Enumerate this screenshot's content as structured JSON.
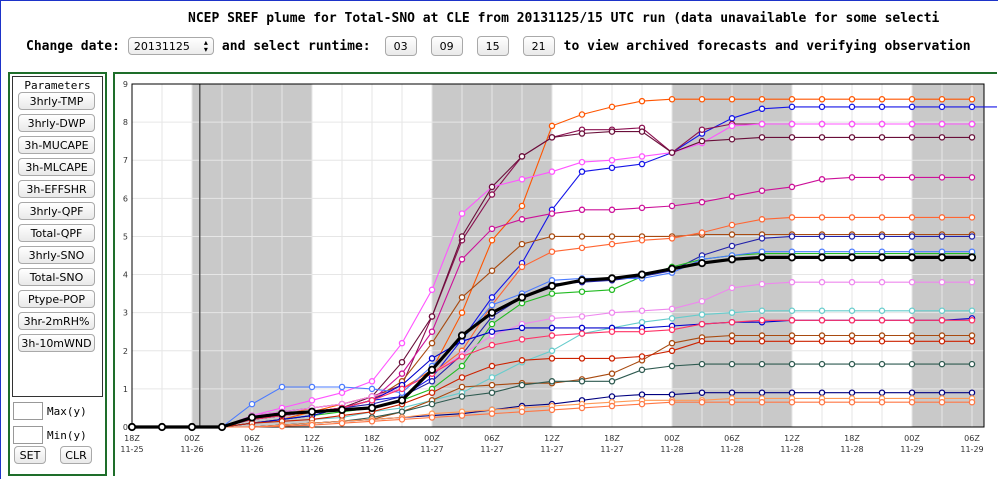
{
  "header": {
    "title": "NCEP SREF plume for Total-SNO at CLE from 20131125/15 UTC run (data unavailable for some selecti",
    "change_date_label": "Change date:",
    "date_value": "20131125",
    "runtime_label": "and select runtime:",
    "runtimes": [
      "03",
      "09",
      "15",
      "21"
    ],
    "tail_text": "to view archived forecasts and verifying observation"
  },
  "sidebar": {
    "heading": "Parameters",
    "buttons": [
      "3hrly-TMP",
      "3hrly-DWP",
      "3h-MUCAPE",
      "3h-MLCAPE",
      "3h-EFFSHR",
      "3hrly-QPF",
      "Total-QPF",
      "3hrly-SNO",
      "Total-SNO",
      "Ptype-POP",
      "3hr-2mRH%",
      "3h-10mWND"
    ],
    "max_label": "Max(y)",
    "min_label": "Min(y)",
    "set_label": "SET",
    "clr_label": "CLR"
  },
  "chart_data": {
    "type": "line",
    "y_ticks": [
      "0",
      "1",
      "2",
      "3",
      "4",
      "5",
      "6",
      "7",
      "8",
      "9"
    ],
    "ylim": [
      0,
      9
    ],
    "x_tick_labels": [
      {
        "hour": "18Z",
        "date": "11-25"
      },
      {
        "hour": "00Z",
        "date": "11-26"
      },
      {
        "hour": "06Z",
        "date": "11-26"
      },
      {
        "hour": "12Z",
        "date": "11-26"
      },
      {
        "hour": "18Z",
        "date": "11-26"
      },
      {
        "hour": "00Z",
        "date": "11-27"
      },
      {
        "hour": "06Z",
        "date": "11-27"
      },
      {
        "hour": "12Z",
        "date": "11-27"
      },
      {
        "hour": "18Z",
        "date": "11-27"
      },
      {
        "hour": "00Z",
        "date": "11-28"
      },
      {
        "hour": "06Z",
        "date": "11-28"
      },
      {
        "hour": "12Z",
        "date": "11-28"
      },
      {
        "hour": "18Z",
        "date": "11-28"
      },
      {
        "hour": "00Z",
        "date": "11-29"
      },
      {
        "hour": "06Z",
        "date": "11-29"
      }
    ],
    "shaded_bands": [
      [
        1,
        3
      ],
      [
        5,
        7
      ],
      [
        9,
        11
      ],
      [
        13,
        14.2
      ]
    ],
    "initial_time_marker": 1.13,
    "series": [
      {
        "color": "#ff5500",
        "values": [
          0,
          0,
          0,
          0,
          0.1,
          0.2,
          0.4,
          0.6,
          0.8,
          1.0,
          1.5,
          3.0,
          4.9,
          5.8,
          7.9,
          8.2,
          8.4,
          8.55,
          8.6,
          8.6,
          8.6,
          8.6,
          8.6,
          8.6,
          8.6,
          8.6,
          8.6,
          8.6,
          8.6
        ]
      },
      {
        "color": "#1515e8",
        "values": [
          0,
          0,
          0,
          0,
          0.2,
          0.3,
          0.4,
          0.5,
          0.7,
          0.8,
          1.3,
          2.3,
          3.4,
          4.3,
          5.7,
          6.7,
          6.8,
          6.9,
          7.2,
          7.7,
          8.1,
          8.35,
          8.4,
          8.4,
          8.4,
          8.4,
          8.4,
          8.4,
          8.4,
          8.4
        ]
      },
      {
        "color": "#8b1050",
        "values": [
          0,
          0,
          0,
          0,
          0.3,
          0.4,
          0.5,
          0.6,
          0.8,
          1.1,
          2.9,
          4.9,
          6.1,
          7.1,
          7.6,
          7.8,
          7.8,
          7.85,
          7.2,
          7.8,
          7.95,
          7.95,
          7.95,
          7.95,
          7.95,
          7.95,
          7.95,
          7.95,
          7.95
        ]
      },
      {
        "color": "#ff55ff",
        "values": [
          0,
          0,
          0,
          0,
          0.3,
          0.5,
          0.7,
          0.9,
          1.2,
          2.2,
          3.6,
          5.6,
          6.3,
          6.5,
          6.7,
          6.95,
          7.0,
          7.1,
          7.2,
          7.45,
          7.9,
          7.95,
          7.95,
          7.95,
          7.95,
          7.95,
          7.95,
          7.95,
          7.95
        ]
      },
      {
        "color": "#6a0f3a",
        "values": [
          0,
          0,
          0,
          0,
          0.2,
          0.3,
          0.4,
          0.5,
          0.8,
          1.7,
          2.9,
          5.0,
          6.3,
          7.1,
          7.6,
          7.7,
          7.75,
          7.75,
          7.2,
          7.5,
          7.55,
          7.6,
          7.6,
          7.6,
          7.6,
          7.6,
          7.6,
          7.6,
          7.6
        ]
      },
      {
        "color": "#cc1199",
        "values": [
          0,
          0,
          0,
          0,
          0.2,
          0.3,
          0.4,
          0.5,
          0.7,
          1.4,
          2.5,
          4.4,
          5.2,
          5.45,
          5.6,
          5.7,
          5.7,
          5.75,
          5.8,
          5.9,
          6.05,
          6.2,
          6.3,
          6.5,
          6.55,
          6.55,
          6.55,
          6.55,
          6.55
        ]
      },
      {
        "color": "#a84a10",
        "values": [
          0,
          0,
          0,
          0,
          0.1,
          0.2,
          0.3,
          0.5,
          0.7,
          1.2,
          2.2,
          3.4,
          4.1,
          4.8,
          5.0,
          5.0,
          5.0,
          5.0,
          5.0,
          5.05,
          5.05,
          5.05,
          5.05,
          5.05,
          5.05,
          5.05,
          5.05,
          5.05,
          5.05
        ]
      },
      {
        "color": "#ff6633",
        "values": [
          0,
          0,
          0,
          0,
          0.2,
          0.3,
          0.5,
          0.6,
          0.8,
          1.0,
          1.4,
          2.0,
          3.2,
          4.2,
          4.6,
          4.7,
          4.8,
          4.9,
          4.95,
          5.1,
          5.3,
          5.45,
          5.5,
          5.5,
          5.5,
          5.5,
          5.5,
          5.5,
          5.5
        ]
      },
      {
        "color": "#2222aa",
        "values": [
          0,
          0,
          0,
          0,
          0.2,
          0.3,
          0.4,
          0.5,
          0.6,
          0.8,
          1.2,
          1.9,
          2.9,
          3.4,
          3.75,
          3.8,
          3.85,
          3.95,
          4.1,
          4.5,
          4.75,
          4.95,
          5.0,
          5.0,
          5.0,
          5.0,
          5.0,
          5.0,
          5.0
        ]
      },
      {
        "color": "#22bb22",
        "values": [
          0,
          0,
          0,
          0,
          0.1,
          0.2,
          0.3,
          0.4,
          0.5,
          0.7,
          1.0,
          1.6,
          2.7,
          3.25,
          3.5,
          3.55,
          3.6,
          3.95,
          4.2,
          4.4,
          4.5,
          4.55,
          4.55,
          4.55,
          4.55,
          4.55,
          4.55,
          4.55,
          4.55
        ]
      },
      {
        "color": "#000000",
        "bold": true,
        "values": [
          0,
          0,
          0,
          0,
          0.25,
          0.35,
          0.4,
          0.45,
          0.5,
          0.7,
          1.5,
          2.4,
          3.0,
          3.4,
          3.7,
          3.85,
          3.9,
          4.0,
          4.15,
          4.3,
          4.4,
          4.45,
          4.45,
          4.45,
          4.45,
          4.45,
          4.45,
          4.45,
          4.45
        ]
      },
      {
        "color": "#4b7bff",
        "values": [
          0,
          0,
          0,
          0,
          0.6,
          1.05,
          1.05,
          1.05,
          1.0,
          0.9,
          1.6,
          2.3,
          3.2,
          3.5,
          3.85,
          3.9,
          3.9,
          3.9,
          4.05,
          4.4,
          4.5,
          4.6,
          4.6,
          4.6,
          4.6,
          4.6,
          4.6,
          4.6,
          4.6
        ]
      },
      {
        "color": "#ee88ee",
        "values": [
          0,
          0,
          0,
          0,
          0.3,
          0.4,
          0.5,
          0.6,
          0.8,
          1.0,
          1.4,
          1.9,
          2.4,
          2.7,
          2.85,
          2.9,
          3.0,
          3.05,
          3.1,
          3.3,
          3.65,
          3.75,
          3.8,
          3.8,
          3.8,
          3.8,
          3.8,
          3.8,
          3.8
        ]
      },
      {
        "color": "#66cccc",
        "values": [
          0,
          0,
          0,
          0,
          0.1,
          0.15,
          0.2,
          0.25,
          0.4,
          0.5,
          0.7,
          0.9,
          1.3,
          1.7,
          2.0,
          2.45,
          2.6,
          2.75,
          2.85,
          2.95,
          3.0,
          3.05,
          3.05,
          3.05,
          3.05,
          3.05,
          3.05,
          3.05,
          3.05
        ]
      },
      {
        "color": "#0000cc",
        "values": [
          0,
          0,
          0,
          0,
          0.1,
          0.2,
          0.3,
          0.5,
          0.7,
          1.1,
          1.8,
          2.25,
          2.5,
          2.6,
          2.6,
          2.6,
          2.6,
          2.6,
          2.65,
          2.7,
          2.75,
          2.75,
          2.8,
          2.8,
          2.8,
          2.8,
          2.8,
          2.8,
          2.85
        ]
      },
      {
        "color": "#ff3366",
        "values": [
          0,
          0,
          0,
          0,
          0.2,
          0.3,
          0.4,
          0.5,
          0.7,
          1.0,
          1.4,
          1.85,
          2.15,
          2.3,
          2.4,
          2.45,
          2.5,
          2.5,
          2.55,
          2.7,
          2.75,
          2.8,
          2.8,
          2.8,
          2.8,
          2.8,
          2.8,
          2.8,
          2.8
        ]
      },
      {
        "color": "#a84a10",
        "values": [
          0,
          0,
          0,
          0,
          0,
          0.05,
          0.1,
          0.15,
          0.2,
          0.4,
          0.7,
          1.05,
          1.1,
          1.15,
          1.15,
          1.25,
          1.4,
          1.75,
          2.2,
          2.35,
          2.4,
          2.4,
          2.4,
          2.4,
          2.4,
          2.4,
          2.4,
          2.4,
          2.4
        ]
      },
      {
        "color": "#cc2200",
        "values": [
          0,
          0,
          0,
          0,
          0.1,
          0.15,
          0.2,
          0.3,
          0.4,
          0.6,
          0.9,
          1.3,
          1.6,
          1.75,
          1.8,
          1.8,
          1.8,
          1.85,
          2.0,
          2.25,
          2.25,
          2.25,
          2.25,
          2.25,
          2.25,
          2.25,
          2.25,
          2.25,
          2.25
        ]
      },
      {
        "color": "#2e5a50",
        "values": [
          0,
          0,
          0,
          0,
          0,
          0.05,
          0.1,
          0.15,
          0.25,
          0.4,
          0.6,
          0.8,
          0.9,
          1.1,
          1.2,
          1.2,
          1.2,
          1.5,
          1.6,
          1.65,
          1.65,
          1.65,
          1.65,
          1.65,
          1.65,
          1.65,
          1.65,
          1.65,
          1.65
        ]
      },
      {
        "color": "#000080",
        "values": [
          0,
          0,
          0,
          0,
          0,
          0.05,
          0.1,
          0.15,
          0.2,
          0.25,
          0.3,
          0.35,
          0.45,
          0.55,
          0.6,
          0.7,
          0.8,
          0.85,
          0.85,
          0.9,
          0.9,
          0.9,
          0.9,
          0.9,
          0.9,
          0.9,
          0.9,
          0.9,
          0.9
        ]
      },
      {
        "color": "#ff9955",
        "values": [
          0,
          0,
          0,
          0,
          0,
          0.05,
          0.1,
          0.15,
          0.2,
          0.25,
          0.35,
          0.4,
          0.45,
          0.5,
          0.55,
          0.6,
          0.65,
          0.7,
          0.7,
          0.7,
          0.75,
          0.75,
          0.75,
          0.75,
          0.75,
          0.75,
          0.75,
          0.75,
          0.75
        ]
      },
      {
        "color": "#ff7744",
        "values": [
          0,
          0,
          0,
          0,
          0,
          0.02,
          0.05,
          0.1,
          0.15,
          0.2,
          0.25,
          0.3,
          0.35,
          0.4,
          0.45,
          0.5,
          0.55,
          0.6,
          0.65,
          0.65,
          0.65,
          0.65,
          0.65,
          0.65,
          0.65,
          0.65,
          0.65,
          0.65,
          0.65
        ]
      }
    ]
  }
}
